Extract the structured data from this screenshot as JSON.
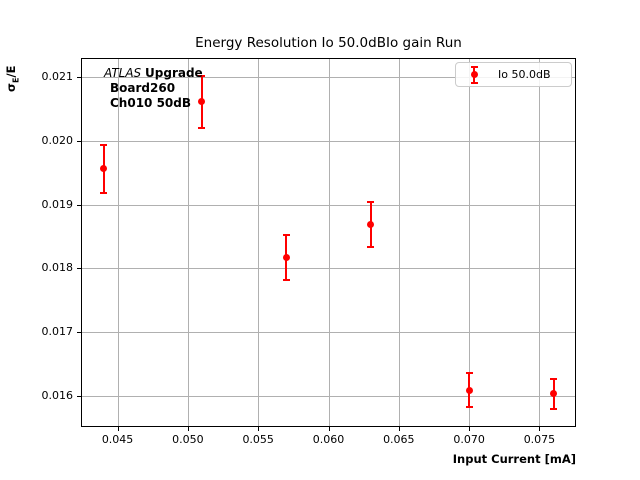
{
  "figure": {
    "kind": "matplotlib-errorbar-plot",
    "background": "#ffffff"
  },
  "chart_data": {
    "type": "scatter",
    "title": "Energy Resolution Io 50.0dBIo gain Run",
    "xlabel": "Input Current [mA]",
    "ylabel": "σE/E",
    "ylabel_parts": {
      "sigma": "σ",
      "sub": "E",
      "rest": "/E"
    },
    "xlim": [
      0.0424,
      0.0776
    ],
    "ylim": [
      0.01551,
      0.0213
    ],
    "xticks": [
      0.045,
      0.05,
      0.055,
      0.06,
      0.065,
      0.07,
      0.075
    ],
    "xtick_labels": [
      "0.045",
      "0.050",
      "0.055",
      "0.060",
      "0.065",
      "0.070",
      "0.075"
    ],
    "yticks": [
      0.016,
      0.017,
      0.018,
      0.019,
      0.02,
      0.021
    ],
    "ytick_labels": [
      "0.016",
      "0.017",
      "0.018",
      "0.019",
      "0.020",
      "0.021"
    ],
    "grid": true,
    "grid_color": "#b0b0b0",
    "legend": {
      "position": "upper right",
      "entries": [
        {
          "label": "Io 50.0dB",
          "color": "#ff0000",
          "marker": "errorbar-point"
        }
      ]
    },
    "series": [
      {
        "name": "Io 50.0dB",
        "color": "#ff0000",
        "points": [
          {
            "x": 0.044,
            "y": 0.01956,
            "yerr": 0.00038
          },
          {
            "x": 0.051,
            "y": 0.02061,
            "yerr": 0.00041
          },
          {
            "x": 0.057,
            "y": 0.01817,
            "yerr": 0.00035
          },
          {
            "x": 0.063,
            "y": 0.01869,
            "yerr": 0.00035
          },
          {
            "x": 0.07,
            "y": 0.01609,
            "yerr": 0.00027
          },
          {
            "x": 0.076,
            "y": 0.01603,
            "yerr": 0.00024
          }
        ]
      }
    ],
    "annotation": {
      "atlas": "ATLAS",
      "upgrade": "Upgrade",
      "line2": "Board260",
      "line3": "Ch010 50dB"
    }
  }
}
